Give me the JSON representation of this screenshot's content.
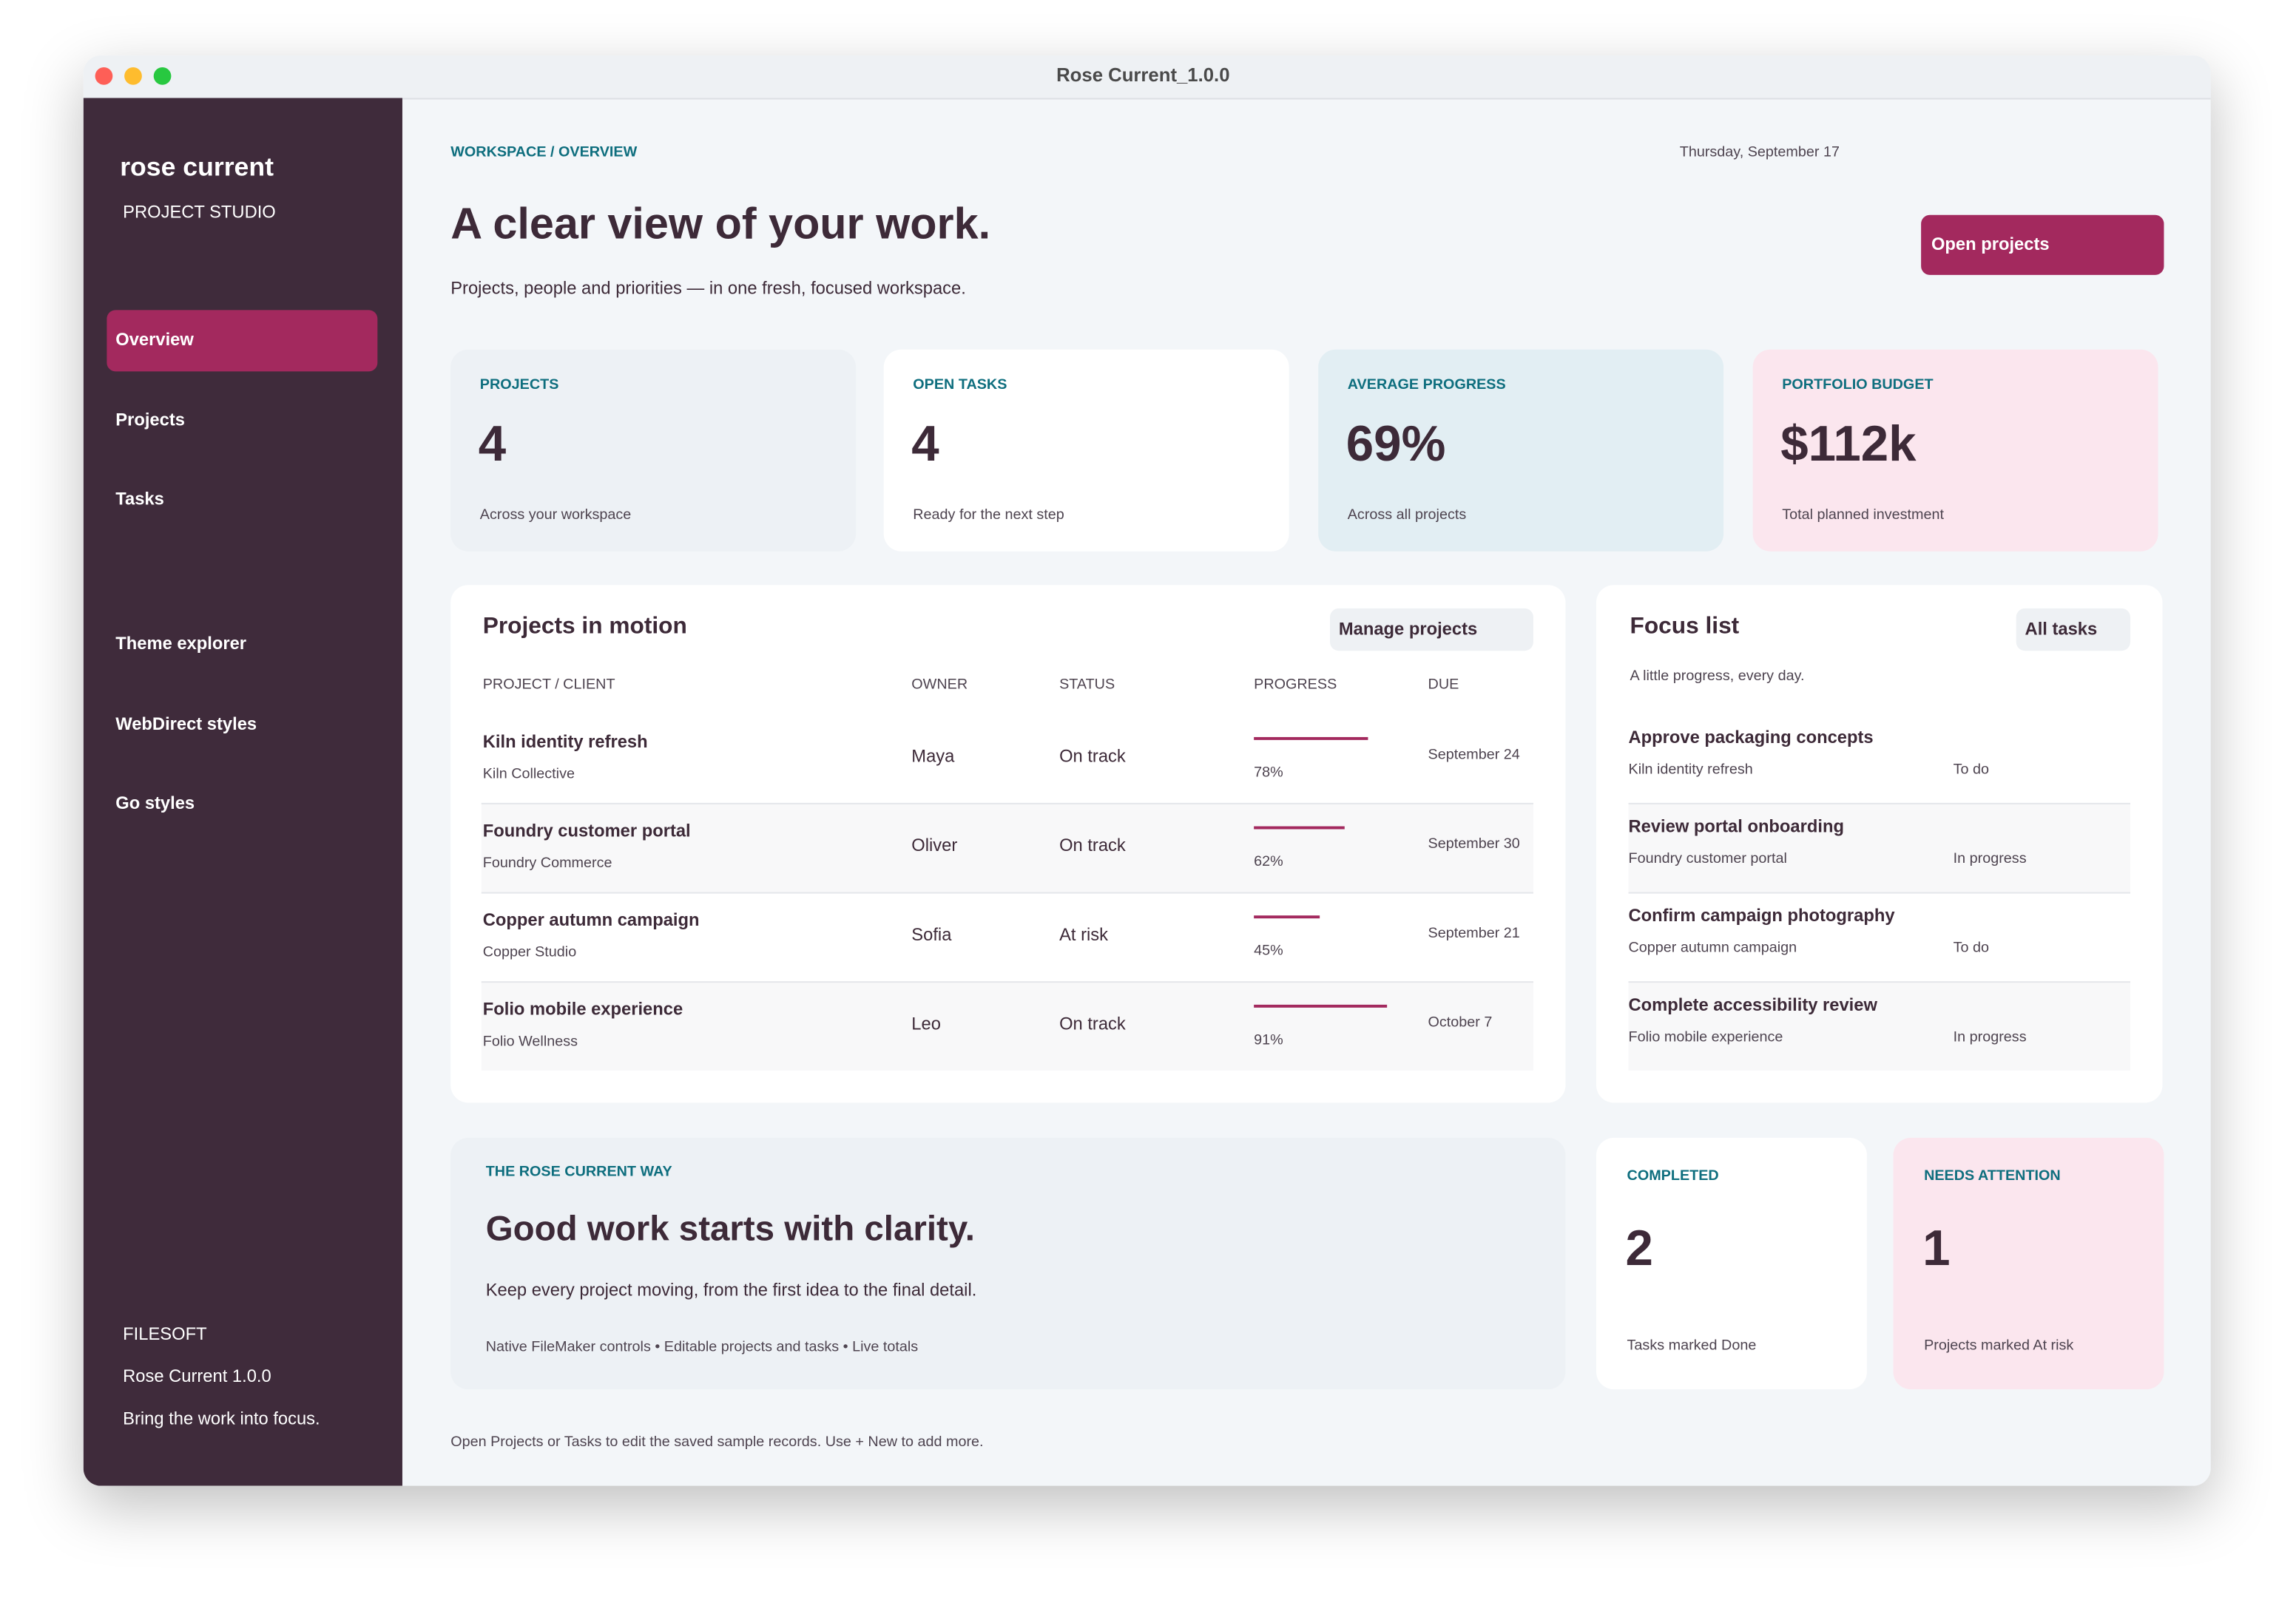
{
  "window": {
    "title": "Rose Current_1.0.0"
  },
  "sidebar": {
    "brand": "rose current",
    "subtitle": "PROJECT STUDIO",
    "nav": [
      "Overview",
      "Projects",
      "Tasks",
      "Theme explorer",
      "WebDirect styles",
      "Go styles"
    ],
    "footer": {
      "company": "FILESOFT",
      "version": "Rose Current 1.0.0",
      "tagline": "Bring the work into focus."
    }
  },
  "header": {
    "breadcrumb": "WORKSPACE / OVERVIEW",
    "date": "Thursday, September 17",
    "title": "A clear view of your work.",
    "subtitle": "Projects, people and priorities — in one fresh, focused workspace.",
    "button": "Open projects"
  },
  "stats": [
    {
      "label": "PROJECTS",
      "value": "4",
      "note": "Across your workspace"
    },
    {
      "label": "OPEN TASKS",
      "value": "4",
      "note": "Ready for the next step"
    },
    {
      "label": "AVERAGE PROGRESS",
      "value": "69%",
      "note": "Across all projects"
    },
    {
      "label": "PORTFOLIO BUDGET",
      "value": "$112k",
      "note": "Total planned investment"
    }
  ],
  "projects": {
    "title": "Projects in motion",
    "button": "Manage projects",
    "columns": [
      "PROJECT / CLIENT",
      "OWNER",
      "STATUS",
      "PROGRESS",
      "DUE"
    ],
    "rows": [
      {
        "name": "Kiln identity refresh",
        "client": "Kiln Collective",
        "owner": "Maya",
        "status": "On track",
        "progress": 78,
        "progress_label": "78%",
        "due": "September 24"
      },
      {
        "name": "Foundry customer portal",
        "client": "Foundry Commerce",
        "owner": "Oliver",
        "status": "On track",
        "progress": 62,
        "progress_label": "62%",
        "due": "September 30"
      },
      {
        "name": "Copper autumn campaign",
        "client": "Copper Studio",
        "owner": "Sofia",
        "status": "At risk",
        "progress": 45,
        "progress_label": "45%",
        "due": "September 21"
      },
      {
        "name": "Folio mobile experience",
        "client": "Folio Wellness",
        "owner": "Leo",
        "status": "On track",
        "progress": 91,
        "progress_label": "91%",
        "due": "October 7"
      }
    ]
  },
  "focus": {
    "title": "Focus list",
    "button": "All tasks",
    "subtitle": "A little progress, every day.",
    "items": [
      {
        "task": "Approve packaging concepts",
        "project": "Kiln identity refresh",
        "status": "To do"
      },
      {
        "task": "Review portal onboarding",
        "project": "Foundry customer portal",
        "status": "In progress"
      },
      {
        "task": "Confirm campaign photography",
        "project": "Copper autumn campaign",
        "status": "To do"
      },
      {
        "task": "Complete accessibility review",
        "project": "Folio mobile experience",
        "status": "In progress"
      }
    ]
  },
  "way": {
    "label": "THE ROSE CURRENT WAY",
    "title": "Good work starts with clarity.",
    "text": "Keep every project moving, from the first idea to the final detail.",
    "meta": "Native FileMaker controls • Editable projects and tasks • Live totals"
  },
  "summary": [
    {
      "label": "COMPLETED",
      "value": "2",
      "note": "Tasks marked Done"
    },
    {
      "label": "NEEDS ATTENTION",
      "value": "1",
      "note": "Projects marked At risk"
    }
  ],
  "footnote": "Open Projects or Tasks to edit the saved sample records. Use + New to add more."
}
